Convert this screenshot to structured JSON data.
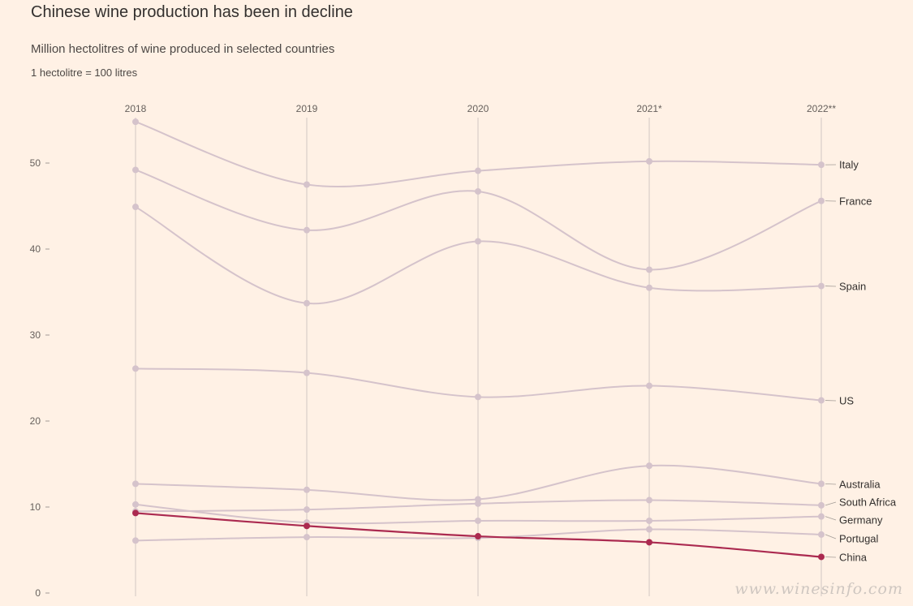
{
  "header": {
    "title": "Chinese wine production has been in decline",
    "subtitle": "Million hectolitres of wine produced in selected countries",
    "note": "1 hectolitre = 100 litres"
  },
  "watermark": "www.winesinfo.com",
  "colors": {
    "background": "#fff1e5",
    "muted_series": "#d5c3cb",
    "highlight_series": "#ab2a50",
    "gridline": "#d9cfc9"
  },
  "chart_data": {
    "type": "line",
    "title": "Chinese wine production has been in decline",
    "subtitle": "Million hectolitres of wine produced in selected countries",
    "x": [
      "2018",
      "2019",
      "2020",
      "2021*",
      "2022**"
    ],
    "ylim": [
      0,
      55
    ],
    "yticks": [
      0,
      10,
      20,
      30,
      40,
      50
    ],
    "grid": "vertical",
    "highlight": "China",
    "series": [
      {
        "name": "Italy",
        "values": [
          54.8,
          47.5,
          49.1,
          50.2,
          49.8
        ]
      },
      {
        "name": "France",
        "values": [
          49.2,
          42.2,
          46.7,
          37.6,
          45.6
        ]
      },
      {
        "name": "Spain",
        "values": [
          44.9,
          33.7,
          40.9,
          35.5,
          35.7
        ]
      },
      {
        "name": "US",
        "values": [
          26.1,
          25.6,
          22.8,
          24.1,
          22.4
        ]
      },
      {
        "name": "Australia",
        "values": [
          12.7,
          12.0,
          10.9,
          14.8,
          12.7
        ]
      },
      {
        "name": "South Africa",
        "values": [
          9.5,
          9.7,
          10.4,
          10.8,
          10.2
        ]
      },
      {
        "name": "Germany",
        "values": [
          10.3,
          8.2,
          8.4,
          8.4,
          8.9
        ]
      },
      {
        "name": "Portugal",
        "values": [
          6.1,
          6.5,
          6.4,
          7.4,
          6.8
        ]
      },
      {
        "name": "China",
        "values": [
          9.3,
          7.8,
          6.6,
          5.9,
          4.2
        ]
      }
    ]
  }
}
